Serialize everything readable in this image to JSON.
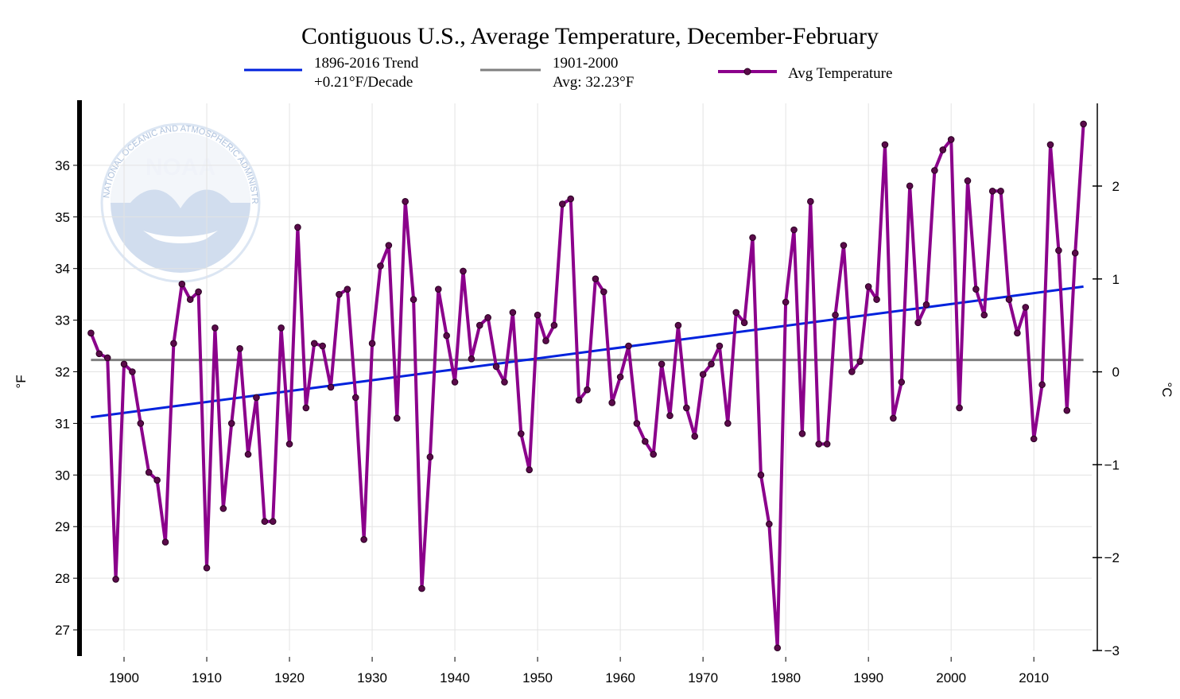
{
  "colors": {
    "series": "#8b008b",
    "trend": "#0022dd",
    "average": "#808080",
    "grid": "#e3e3e3",
    "logo": "#c9d8ec"
  },
  "logo": {
    "abbr": "NOAA",
    "ring_text": "NATIONAL OCEANIC AND ATMOSPHERIC ADMINISTRATION · U.S. DEPARTMENT OF COMMERCE"
  },
  "chart_data": {
    "type": "line",
    "title": "Contiguous U.S., Average Temperature, December-February",
    "ylabel": "°F",
    "y2label": "°C",
    "xlim": [
      1895,
      2017
    ],
    "ylim": [
      26.6,
      37.2
    ],
    "y2lim": [
      -3.0,
      2.89
    ],
    "xticks": [
      1900,
      1910,
      1920,
      1930,
      1940,
      1950,
      1960,
      1970,
      1980,
      1990,
      2000,
      2010
    ],
    "yticks": [
      27,
      28,
      29,
      30,
      31,
      32,
      33,
      34,
      35,
      36
    ],
    "y2ticks": [
      -3,
      -2,
      -1,
      0,
      1,
      2
    ],
    "legend": {
      "trend_line1": "1896-2016 Trend",
      "trend_line2": "+0.21°F/Decade",
      "avg_line1": "1901-2000",
      "avg_line2": "Avg: 32.23°F",
      "series_label": "Avg Temperature"
    },
    "trend": {
      "x": [
        1896,
        2016
      ],
      "y": [
        31.12,
        33.65
      ]
    },
    "average": {
      "value": 32.23
    },
    "series": [
      {
        "name": "Avg Temperature",
        "x": [
          1896,
          1897,
          1898,
          1899,
          1900,
          1901,
          1902,
          1903,
          1904,
          1905,
          1906,
          1907,
          1908,
          1909,
          1910,
          1911,
          1912,
          1913,
          1914,
          1915,
          1916,
          1917,
          1918,
          1919,
          1920,
          1921,
          1922,
          1923,
          1924,
          1925,
          1926,
          1927,
          1928,
          1929,
          1930,
          1931,
          1932,
          1933,
          1934,
          1935,
          1936,
          1937,
          1938,
          1939,
          1940,
          1941,
          1942,
          1943,
          1944,
          1945,
          1946,
          1947,
          1948,
          1949,
          1950,
          1951,
          1952,
          1953,
          1954,
          1955,
          1956,
          1957,
          1958,
          1959,
          1960,
          1961,
          1962,
          1963,
          1964,
          1965,
          1966,
          1967,
          1968,
          1969,
          1970,
          1971,
          1972,
          1973,
          1974,
          1975,
          1976,
          1977,
          1978,
          1979,
          1980,
          1981,
          1982,
          1983,
          1984,
          1985,
          1986,
          1987,
          1988,
          1989,
          1990,
          1991,
          1992,
          1993,
          1994,
          1995,
          1996,
          1997,
          1998,
          1999,
          2000,
          2001,
          2002,
          2003,
          2004,
          2005,
          2006,
          2007,
          2008,
          2009,
          2010,
          2011,
          2012,
          2013,
          2014,
          2015,
          2016
        ],
        "values": [
          32.75,
          32.35,
          32.27,
          27.98,
          32.15,
          32.0,
          31.0,
          30.05,
          29.9,
          28.7,
          32.55,
          33.7,
          33.4,
          33.55,
          28.2,
          32.85,
          29.35,
          31.0,
          32.45,
          30.4,
          31.5,
          29.1,
          29.1,
          32.85,
          30.6,
          34.8,
          31.3,
          32.55,
          32.5,
          31.7,
          33.5,
          33.6,
          31.5,
          28.75,
          32.55,
          34.05,
          34.45,
          31.1,
          35.3,
          33.4,
          27.8,
          30.35,
          33.6,
          32.7,
          31.8,
          33.95,
          32.25,
          32.9,
          33.05,
          32.1,
          31.8,
          33.15,
          30.8,
          30.1,
          33.1,
          32.6,
          32.9,
          35.25,
          35.35,
          31.45,
          31.65,
          33.8,
          33.55,
          31.4,
          31.9,
          32.5,
          31.0,
          30.65,
          30.4,
          32.15,
          31.15,
          32.9,
          31.3,
          30.75,
          31.95,
          32.15,
          32.5,
          31.0,
          33.15,
          32.95,
          34.6,
          30.0,
          29.05,
          26.65,
          33.35,
          34.75,
          30.8,
          35.3,
          30.6,
          30.6,
          33.1,
          34.45,
          32.0,
          32.2,
          33.65,
          33.4,
          36.4,
          31.1,
          31.8,
          35.6,
          32.95,
          33.3,
          35.9,
          36.3,
          36.5,
          31.3,
          35.7,
          33.6,
          33.1,
          35.5,
          35.5,
          33.4,
          32.75,
          33.25,
          30.7,
          31.75,
          36.4,
          34.35,
          31.25,
          34.3,
          36.8
        ]
      }
    ]
  }
}
